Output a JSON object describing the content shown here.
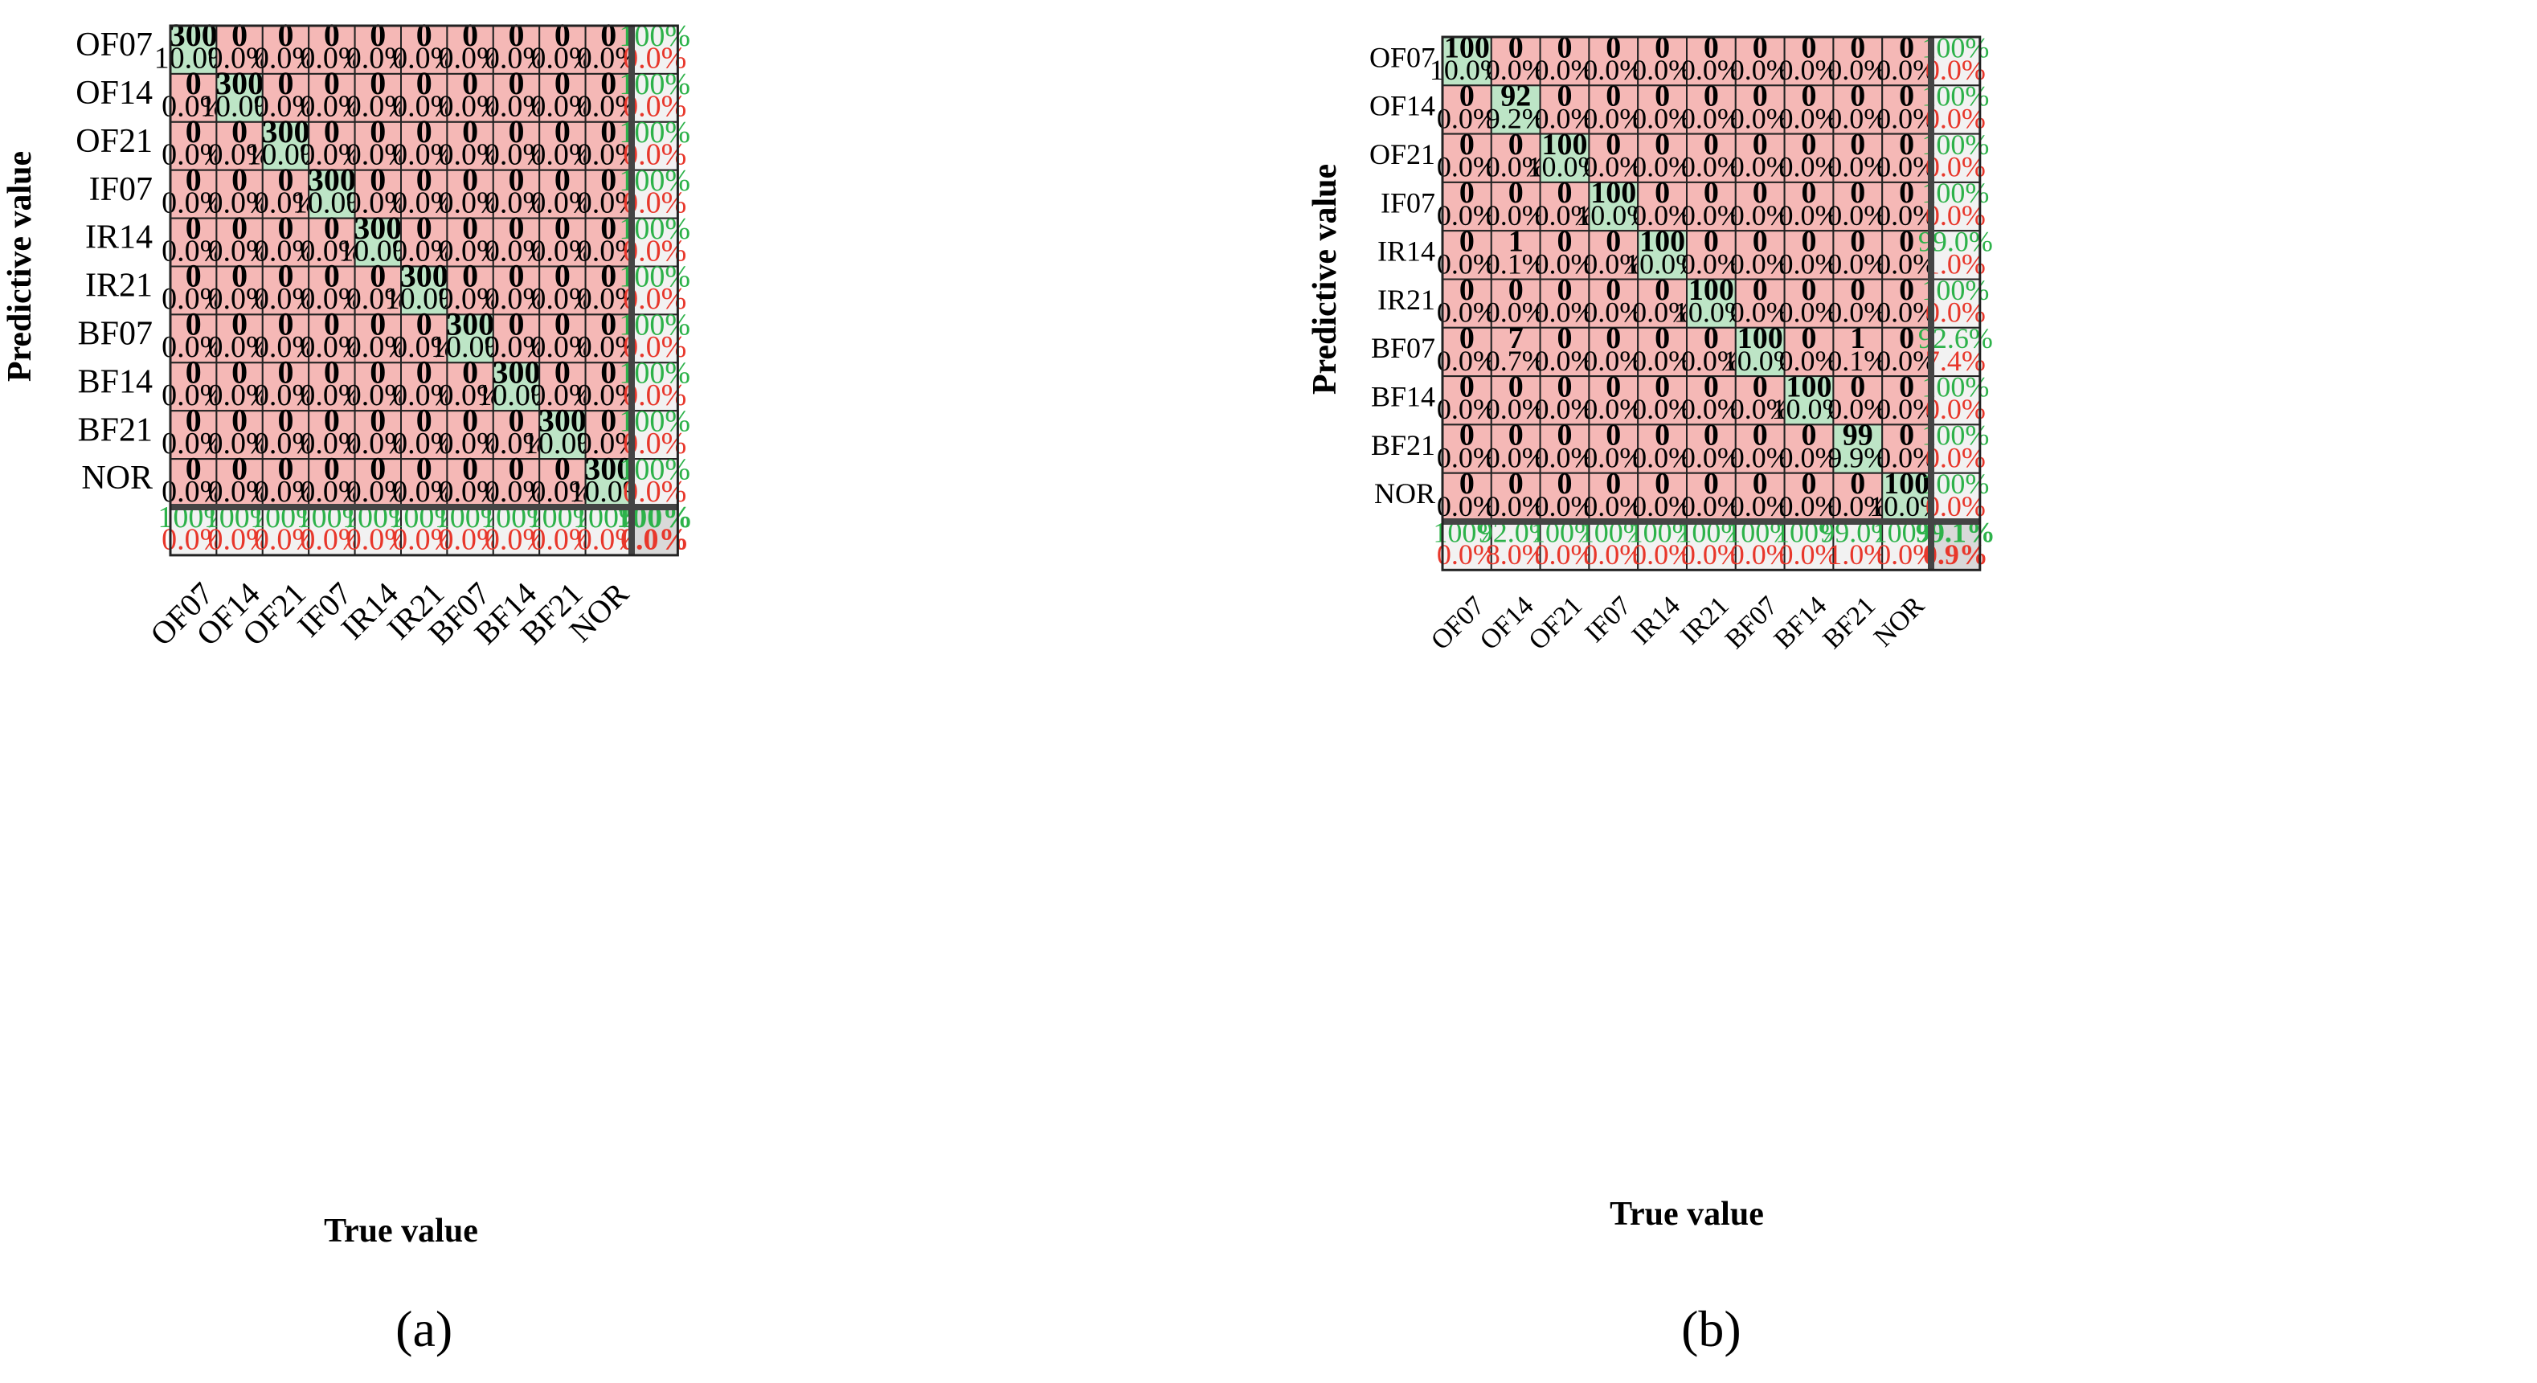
{
  "chart_data": [
    {
      "type": "heatmap",
      "panel_label": "(a)",
      "xlabel": "True value",
      "ylabel": "Predictive value",
      "classes": [
        "OF07",
        "OF14",
        "OF21",
        "IF07",
        "IR14",
        "IR21",
        "BF07",
        "BF14",
        "BF21",
        "NOR"
      ],
      "row_labels": [
        "OF07",
        "OF14",
        "OF21",
        "IF07",
        "IR14",
        "IR21",
        "BF07",
        "BF14",
        "BF21",
        "NOR"
      ],
      "matrix": [
        [
          300,
          0,
          0,
          0,
          0,
          0,
          0,
          0,
          0,
          0
        ],
        [
          0,
          300,
          0,
          0,
          0,
          0,
          0,
          0,
          0,
          0
        ],
        [
          0,
          0,
          300,
          0,
          0,
          0,
          0,
          0,
          0,
          0
        ],
        [
          0,
          0,
          0,
          300,
          0,
          0,
          0,
          0,
          0,
          0
        ],
        [
          0,
          0,
          0,
          0,
          300,
          0,
          0,
          0,
          0,
          0
        ],
        [
          0,
          0,
          0,
          0,
          0,
          300,
          0,
          0,
          0,
          0
        ],
        [
          0,
          0,
          0,
          0,
          0,
          0,
          300,
          0,
          0,
          0
        ],
        [
          0,
          0,
          0,
          0,
          0,
          0,
          0,
          300,
          0,
          0
        ],
        [
          0,
          0,
          0,
          0,
          0,
          0,
          0,
          0,
          300,
          0
        ],
        [
          0,
          0,
          0,
          0,
          0,
          0,
          0,
          0,
          0,
          300
        ]
      ],
      "percent": [
        [
          "10.0%",
          "0.0%",
          "0.0%",
          "0.0%",
          "0.0%",
          "0.0%",
          "0.0%",
          "0.0%",
          "0.0%",
          "0.0%"
        ],
        [
          "0.0%",
          "10.0%",
          "0.0%",
          "0.0%",
          "0.0%",
          "0.0%",
          "0.0%",
          "0.0%",
          "0.0%",
          "0.0%"
        ],
        [
          "0.0%",
          "0.0%",
          "10.0%",
          "0.0%",
          "0.0%",
          "0.0%",
          "0.0%",
          "0.0%",
          "0.0%",
          "0.0%"
        ],
        [
          "0.0%",
          "0.0%",
          "0.0%",
          "10.0%",
          "0.0%",
          "0.0%",
          "0.0%",
          "0.0%",
          "0.0%",
          "0.0%"
        ],
        [
          "0.0%",
          "0.0%",
          "0.0%",
          "0.0%",
          "10.0%",
          "0.0%",
          "0.0%",
          "0.0%",
          "0.0%",
          "0.0%"
        ],
        [
          "0.0%",
          "0.0%",
          "0.0%",
          "0.0%",
          "0.0%",
          "10.0%",
          "0.0%",
          "0.0%",
          "0.0%",
          "0.0%"
        ],
        [
          "0.0%",
          "0.0%",
          "0.0%",
          "0.0%",
          "0.0%",
          "0.0%",
          "10.0%",
          "0.0%",
          "0.0%",
          "0.0%"
        ],
        [
          "0.0%",
          "0.0%",
          "0.0%",
          "0.0%",
          "0.0%",
          "0.0%",
          "0.0%",
          "10.0%",
          "0.0%",
          "0.0%"
        ],
        [
          "0.0%",
          "0.0%",
          "0.0%",
          "0.0%",
          "0.0%",
          "0.0%",
          "0.0%",
          "0.0%",
          "10.0%",
          "0.0%"
        ],
        [
          "0.0%",
          "0.0%",
          "0.0%",
          "0.0%",
          "0.0%",
          "0.0%",
          "0.0%",
          "0.0%",
          "0.0%",
          "10.0%"
        ]
      ],
      "row_summary": [
        [
          "100%",
          "0.0%"
        ],
        [
          "100%",
          "0.0%"
        ],
        [
          "100%",
          "0.0%"
        ],
        [
          "100%",
          "0.0%"
        ],
        [
          "100%",
          "0.0%"
        ],
        [
          "100%",
          "0.0%"
        ],
        [
          "100%",
          "0.0%"
        ],
        [
          "100%",
          "0.0%"
        ],
        [
          "100%",
          "0.0%"
        ],
        [
          "100%",
          "0.0%"
        ]
      ],
      "col_summary": [
        [
          "100%",
          "0.0%"
        ],
        [
          "100%",
          "0.0%"
        ],
        [
          "100%",
          "0.0%"
        ],
        [
          "100%",
          "0.0%"
        ],
        [
          "100%",
          "0.0%"
        ],
        [
          "100%",
          "0.0%"
        ],
        [
          "100%",
          "0.0%"
        ],
        [
          "100%",
          "0.0%"
        ],
        [
          "100%",
          "0.0%"
        ],
        [
          "100%",
          "0.0%"
        ]
      ],
      "overall": [
        "100%",
        "0.0%"
      ]
    },
    {
      "type": "heatmap",
      "panel_label": "(b)",
      "xlabel": "True value",
      "ylabel": "Predictive value",
      "classes": [
        "OF07",
        "OF14",
        "OF21",
        "IF07",
        "IR14",
        "IR21",
        "BF07",
        "BF14",
        "BF21",
        "NOR"
      ],
      "row_labels": [
        "OF07",
        "OF14",
        "OF21",
        "IF07",
        "IR14",
        "IR21",
        "BF07",
        "BF14",
        "BF21",
        "NOR"
      ],
      "matrix": [
        [
          100,
          0,
          0,
          0,
          0,
          0,
          0,
          0,
          0,
          0
        ],
        [
          0,
          92,
          0,
          0,
          0,
          0,
          0,
          0,
          0,
          0
        ],
        [
          0,
          0,
          100,
          0,
          0,
          0,
          0,
          0,
          0,
          0
        ],
        [
          0,
          0,
          0,
          100,
          0,
          0,
          0,
          0,
          0,
          0
        ],
        [
          0,
          1,
          0,
          0,
          100,
          0,
          0,
          0,
          0,
          0
        ],
        [
          0,
          0,
          0,
          0,
          0,
          100,
          0,
          0,
          0,
          0
        ],
        [
          0,
          7,
          0,
          0,
          0,
          0,
          100,
          0,
          1,
          0
        ],
        [
          0,
          0,
          0,
          0,
          0,
          0,
          0,
          100,
          0,
          0
        ],
        [
          0,
          0,
          0,
          0,
          0,
          0,
          0,
          0,
          99,
          0
        ],
        [
          0,
          0,
          0,
          0,
          0,
          0,
          0,
          0,
          0,
          100
        ]
      ],
      "percent": [
        [
          "10.0%",
          "0.0%",
          "0.0%",
          "0.0%",
          "0.0%",
          "0.0%",
          "0.0%",
          "0.0%",
          "0.0%",
          "0.0%"
        ],
        [
          "0.0%",
          "9.2%",
          "0.0%",
          "0.0%",
          "0.0%",
          "0.0%",
          "0.0%",
          "0.0%",
          "0.0%",
          "0.0%"
        ],
        [
          "0.0%",
          "0.0%",
          "10.0%",
          "0.0%",
          "0.0%",
          "0.0%",
          "0.0%",
          "0.0%",
          "0.0%",
          "0.0%"
        ],
        [
          "0.0%",
          "0.0%",
          "0.0%",
          "10.0%",
          "0.0%",
          "0.0%",
          "0.0%",
          "0.0%",
          "0.0%",
          "0.0%"
        ],
        [
          "0.0%",
          "0.1%",
          "0.0%",
          "0.0%",
          "10.0%",
          "0.0%",
          "0.0%",
          "0.0%",
          "0.0%",
          "0.0%"
        ],
        [
          "0.0%",
          "0.0%",
          "0.0%",
          "0.0%",
          "0.0%",
          "10.0%",
          "0.0%",
          "0.0%",
          "0.0%",
          "0.0%"
        ],
        [
          "0.0%",
          "0.7%",
          "0.0%",
          "0.0%",
          "0.0%",
          "0.0%",
          "10.0%",
          "0.0%",
          "0.1%",
          "0.0%"
        ],
        [
          "0.0%",
          "0.0%",
          "0.0%",
          "0.0%",
          "0.0%",
          "0.0%",
          "0.0%",
          "10.0%",
          "0.0%",
          "0.0%"
        ],
        [
          "0.0%",
          "0.0%",
          "0.0%",
          "0.0%",
          "0.0%",
          "0.0%",
          "0.0%",
          "0.0%",
          "9.9%",
          "0.0%"
        ],
        [
          "0.0%",
          "0.0%",
          "0.0%",
          "0.0%",
          "0.0%",
          "0.0%",
          "0.0%",
          "0.0%",
          "0.0%",
          "10.0%"
        ]
      ],
      "row_summary": [
        [
          "100%",
          "0.0%"
        ],
        [
          "100%",
          "0.0%"
        ],
        [
          "100%",
          "0.0%"
        ],
        [
          "100%",
          "0.0%"
        ],
        [
          "99.0%",
          "1.0%"
        ],
        [
          "100%",
          "0.0%"
        ],
        [
          "92.6%",
          "7.4%"
        ],
        [
          "100%",
          "0.0%"
        ],
        [
          "100%",
          "0.0%"
        ],
        [
          "100%",
          "0.0%"
        ]
      ],
      "col_summary": [
        [
          "100%",
          "0.0%"
        ],
        [
          "92.0%",
          "8.0%"
        ],
        [
          "100%",
          "0.0%"
        ],
        [
          "100%",
          "0.0%"
        ],
        [
          "100%",
          "0.0%"
        ],
        [
          "100%",
          "0.0%"
        ],
        [
          "100%",
          "0.0%"
        ],
        [
          "100%",
          "0.0%"
        ],
        [
          "99.0%",
          "1.0%"
        ],
        [
          "100%",
          "0.0%"
        ]
      ],
      "overall": [
        "99.1%",
        "0.9%"
      ]
    }
  ],
  "colors": {
    "diag": "#bde5c6",
    "off": "#f5b8b6",
    "summary": "#f2f2f2",
    "overall": "#d9d9d9",
    "green_text": "#2db24a",
    "red_text": "#e8372b",
    "count_text": "#000000"
  }
}
